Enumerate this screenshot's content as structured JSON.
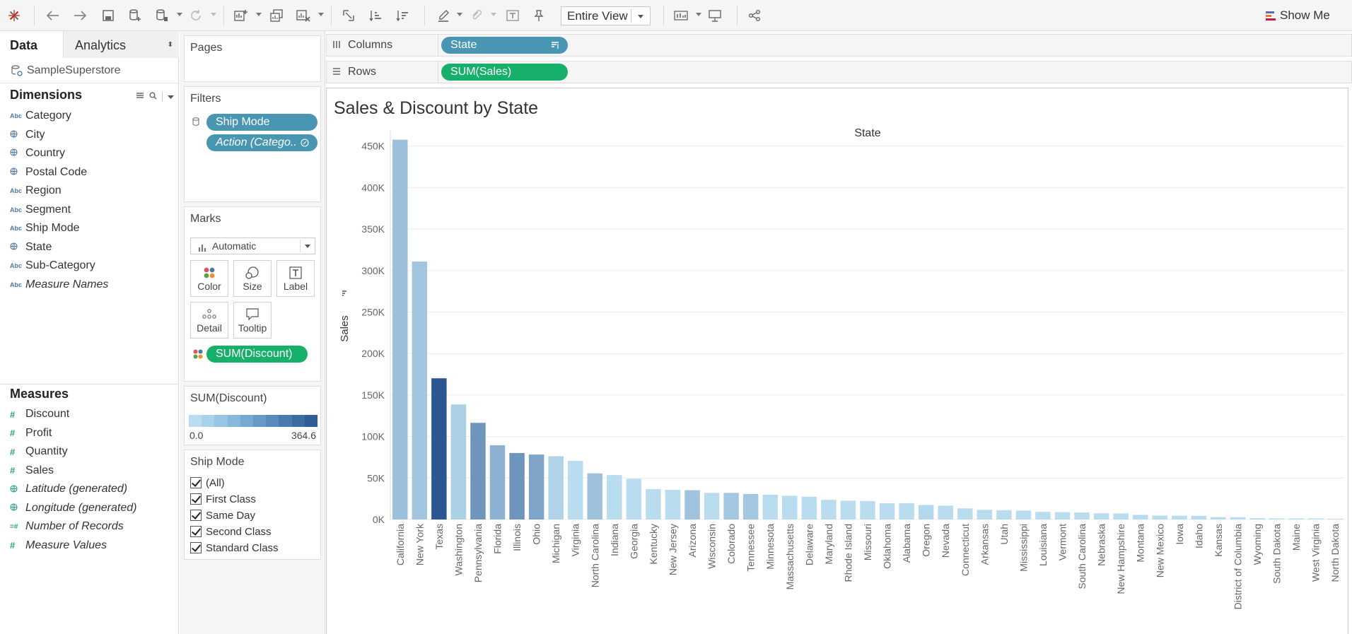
{
  "toolbar": {
    "view_mode": "Entire View",
    "show_me": "Show Me"
  },
  "data_pane": {
    "tabs": {
      "data": "Data",
      "analytics": "Analytics"
    },
    "datasource": "SampleSuperstore",
    "dimensions_header": "Dimensions",
    "dimensions": [
      {
        "label": "Category",
        "icon": "Abc",
        "italic": false
      },
      {
        "label": "City",
        "icon": "globe",
        "italic": false
      },
      {
        "label": "Country",
        "icon": "globe",
        "italic": false
      },
      {
        "label": "Postal Code",
        "icon": "globe",
        "italic": false
      },
      {
        "label": "Region",
        "icon": "Abc",
        "italic": false
      },
      {
        "label": "Segment",
        "icon": "Abc",
        "italic": false
      },
      {
        "label": "Ship Mode",
        "icon": "Abc",
        "italic": false
      },
      {
        "label": "State",
        "icon": "globe",
        "italic": false
      },
      {
        "label": "Sub-Category",
        "icon": "Abc",
        "italic": false
      },
      {
        "label": "Measure Names",
        "icon": "Abc",
        "italic": true
      }
    ],
    "measures_header": "Measures",
    "measures": [
      {
        "label": "Discount",
        "icon": "#",
        "italic": false
      },
      {
        "label": "Profit",
        "icon": "#",
        "italic": false
      },
      {
        "label": "Quantity",
        "icon": "#",
        "italic": false
      },
      {
        "label": "Sales",
        "icon": "#",
        "italic": false
      },
      {
        "label": "Latitude (generated)",
        "icon": "globe",
        "italic": true
      },
      {
        "label": "Longitude (generated)",
        "icon": "globe",
        "italic": true
      },
      {
        "label": "Number of Records",
        "icon": "=#",
        "italic": true
      },
      {
        "label": "Measure Values",
        "icon": "#",
        "italic": true
      }
    ]
  },
  "cards": {
    "pages": "Pages",
    "filters": {
      "title": "Filters",
      "pills": [
        "Ship Mode",
        "Action (Catego.."
      ]
    },
    "marks": {
      "title": "Marks",
      "type": "Automatic",
      "buttons": [
        "Color",
        "Size",
        "Label",
        "Detail",
        "Tooltip"
      ],
      "pill": "SUM(Discount)"
    },
    "color_legend": {
      "title": "SUM(Discount)",
      "min": "0.0",
      "max": "364.6",
      "colors": [
        "#b9dcef",
        "#a9d1ea",
        "#98c5e3",
        "#87b8db",
        "#77aad1",
        "#679ac6",
        "#588bbb",
        "#4a7baf",
        "#3d6ca3",
        "#305d96"
      ]
    },
    "ship_mode": {
      "title": "Ship Mode",
      "options": [
        "(All)",
        "First Class",
        "Same Day",
        "Second Class",
        "Standard Class"
      ]
    }
  },
  "shelves": {
    "columns": {
      "label": "Columns",
      "pill": "State"
    },
    "rows": {
      "label": "Rows",
      "pill": "SUM(Sales)"
    }
  },
  "viz": {
    "title": "Sales & Discount by State"
  },
  "chart_data": {
    "type": "bar",
    "title": "Sales & Discount by State",
    "xlabel": "State",
    "ylabel": "Sales",
    "ylim": [
      0,
      460000
    ],
    "yticks": [
      0,
      50000,
      100000,
      150000,
      200000,
      250000,
      300000,
      350000,
      400000,
      450000
    ],
    "ytick_labels": [
      "0K",
      "50K",
      "100K",
      "150K",
      "200K",
      "250K",
      "300K",
      "350K",
      "400K",
      "450K"
    ],
    "grid": true,
    "sorted": "descending",
    "color_by": "SUM(Discount)",
    "categories": [
      "California",
      "New York",
      "Texas",
      "Washington",
      "Pennsylvania",
      "Florida",
      "Illinois",
      "Ohio",
      "Michigan",
      "Virginia",
      "North Carolina",
      "Indiana",
      "Georgia",
      "Kentucky",
      "New Jersey",
      "Arizona",
      "Wisconsin",
      "Colorado",
      "Tennessee",
      "Minnesota",
      "Massachusetts",
      "Delaware",
      "Maryland",
      "Rhode Island",
      "Missouri",
      "Oklahoma",
      "Alabama",
      "Oregon",
      "Nevada",
      "Connecticut",
      "Arkansas",
      "Utah",
      "Mississippi",
      "Louisiana",
      "Vermont",
      "South Carolina",
      "Nebraska",
      "New Hampshire",
      "Montana",
      "New Mexico",
      "Iowa",
      "Idaho",
      "Kansas",
      "District of Columbia",
      "Wyoming",
      "South Dakota",
      "Maine",
      "West Virginia",
      "North Dakota"
    ],
    "values": [
      457688,
      310876,
      170188,
      138641,
      116512,
      89474,
      80166,
      78258,
      76270,
      70637,
      55603,
      53555,
      49096,
      36592,
      35764,
      35282,
      32115,
      32108,
      30662,
      29863,
      28634,
      27451,
      23706,
      22628,
      22205,
      19683,
      19511,
      17431,
      16729,
      13384,
      11678,
      11220,
      10771,
      9217,
      8929,
      8482,
      7465,
      7293,
      5589,
      4784,
      4580,
      4382,
      2914,
      2865,
      1603,
      1316,
      1271,
      1210,
      920
    ],
    "discount": [
      76.0,
      62.4,
      364.6,
      32.4,
      192.9,
      114.7,
      191.9,
      152.4,
      24.0,
      0,
      70.6,
      0,
      0,
      0,
      0,
      68.0,
      0,
      57.6,
      53.9,
      0,
      0,
      0,
      0,
      0,
      0,
      0,
      0,
      12.2,
      2.4,
      0.6,
      0,
      1.2,
      0,
      0,
      0,
      0,
      0,
      0,
      1.6,
      1.2,
      0,
      1.6,
      0,
      0,
      0,
      0,
      0,
      0,
      0
    ]
  }
}
